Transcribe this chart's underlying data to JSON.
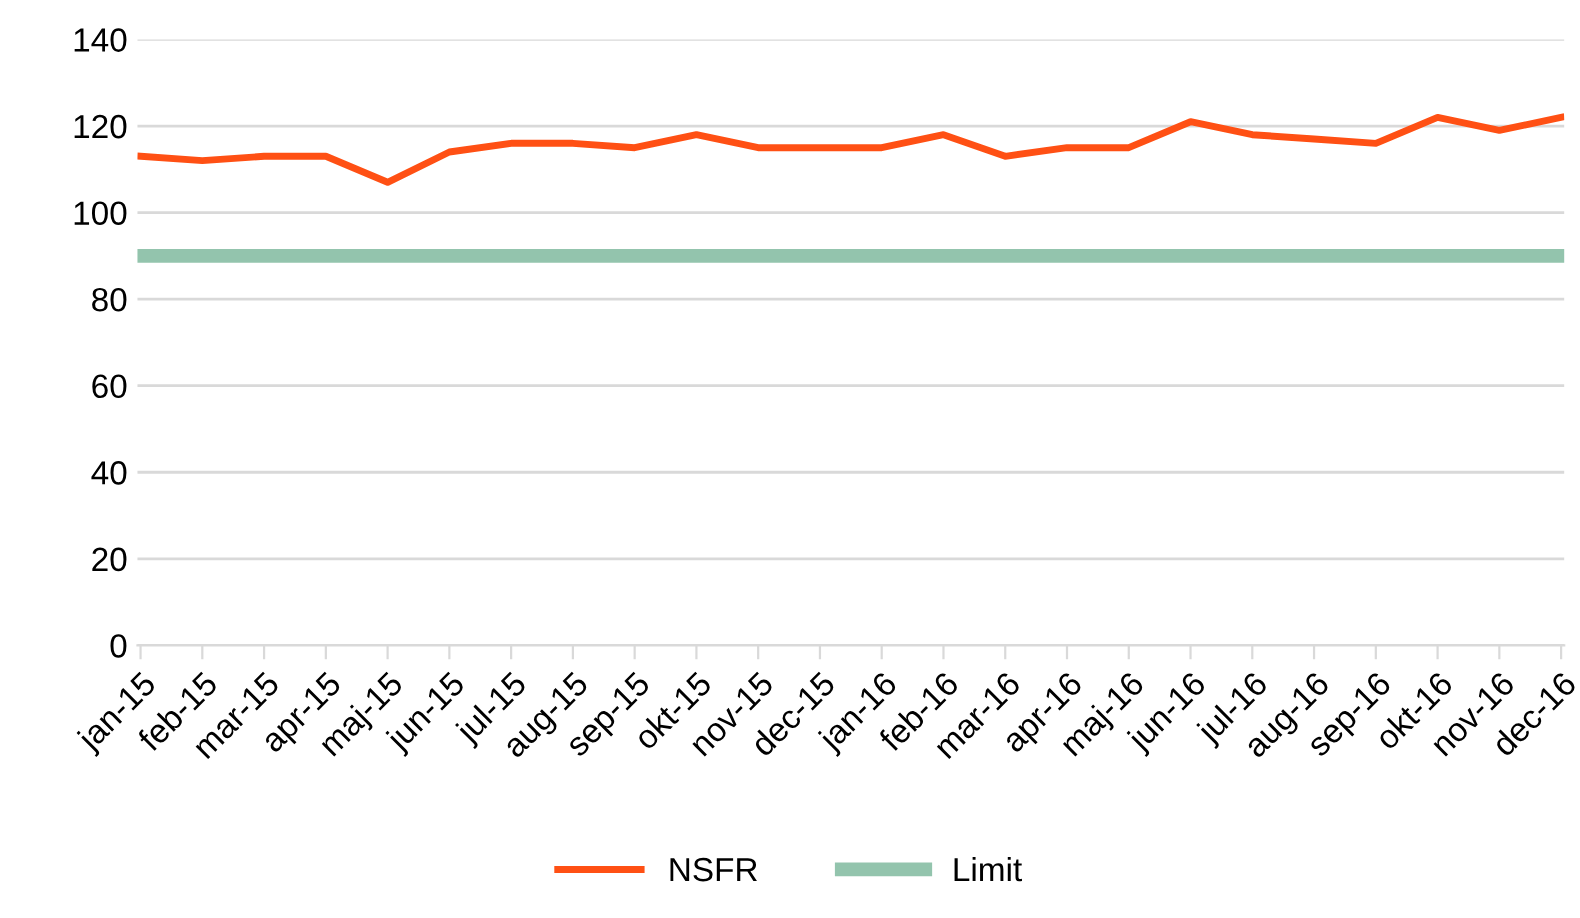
{
  "chart_data": {
    "type": "line",
    "categories": [
      "jan-15",
      "feb-15",
      "mar-15",
      "apr-15",
      "maj-15",
      "jun-15",
      "jul-15",
      "aug-15",
      "sep-15",
      "okt-15",
      "nov-15",
      "dec-15",
      "jan-16",
      "feb-16",
      "mar-16",
      "apr-16",
      "maj-16",
      "jun-16",
      "jul-16",
      "aug-16",
      "sep-16",
      "okt-16",
      "nov-16",
      "dec-16"
    ],
    "series": [
      {
        "name": "NSFR",
        "color": "#ff5014",
        "values": [
          113,
          112,
          113,
          113,
          107,
          114,
          116,
          116,
          115,
          118,
          115,
          115,
          115,
          118,
          113,
          115,
          115,
          121,
          118,
          117,
          116,
          122,
          119,
          122
        ]
      },
      {
        "name": "Limit",
        "color": "#93c4ad",
        "values": [
          90,
          90,
          90,
          90,
          90,
          90,
          90,
          90,
          90,
          90,
          90,
          90,
          90,
          90,
          90,
          90,
          90,
          90,
          90,
          90,
          90,
          90,
          90,
          90
        ]
      }
    ],
    "ylim": [
      0,
      140
    ],
    "yticks": [
      0,
      20,
      40,
      60,
      80,
      100,
      120,
      140
    ],
    "grid": "y",
    "legend": "bottom",
    "marker": "none",
    "line_style": "solid"
  }
}
